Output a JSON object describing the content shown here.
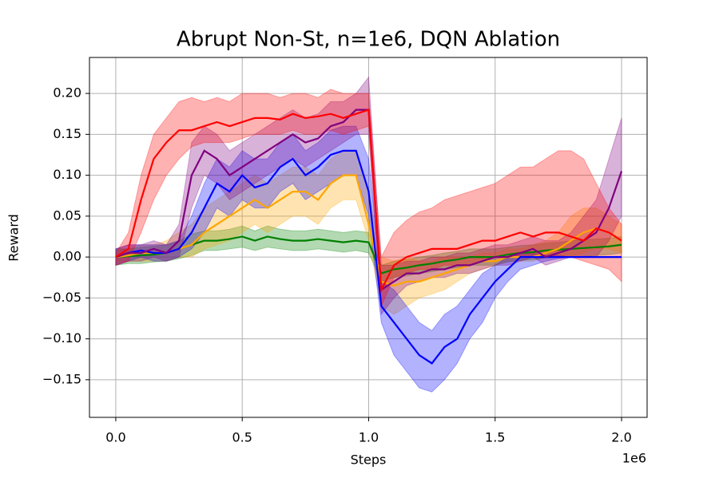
{
  "chart_data": {
    "type": "line",
    "title": "Abrupt Non-St, n=1e6, DQN Ablation",
    "x_label": "Steps",
    "y_label": "Reward",
    "x_offset_label": "1e6",
    "grid": true,
    "xlim": [
      -0.104,
      2.101
    ],
    "ylim": [
      -0.196,
      0.244
    ],
    "xticks": [
      {
        "value": 0,
        "label": "0.0"
      },
      {
        "value": 0.5,
        "label": "0.5"
      },
      {
        "value": 1,
        "label": "1.0"
      },
      {
        "value": 1.5,
        "label": "1.5"
      },
      {
        "value": 2,
        "label": "2.0"
      }
    ],
    "yticks": [
      {
        "value": -0.15,
        "label": "−0.15"
      },
      {
        "value": -0.1,
        "label": "−0.10"
      },
      {
        "value": -0.05,
        "label": "−0.05"
      },
      {
        "value": 0,
        "label": "0.00"
      },
      {
        "value": 0.05,
        "label": "0.05"
      },
      {
        "value": 0.1,
        "label": "0.10"
      },
      {
        "value": 0.15,
        "label": "0.15"
      },
      {
        "value": 0.2,
        "label": "0.20"
      }
    ],
    "x": [
      0,
      0.05,
      0.1,
      0.15,
      0.2,
      0.25,
      0.3,
      0.35,
      0.4,
      0.45,
      0.5,
      0.55,
      0.6,
      0.65,
      0.7,
      0.75,
      0.8,
      0.85,
      0.9,
      0.95,
      1.0,
      1.05,
      1.1,
      1.15,
      1.2,
      1.25,
      1.3,
      1.35,
      1.4,
      1.45,
      1.5,
      1.55,
      1.6,
      1.65,
      1.7,
      1.75,
      1.8,
      1.85,
      1.9,
      1.95,
      2.0
    ],
    "series": [
      {
        "color": "green",
        "values": [
          0,
          0.001,
          0.002,
          0.003,
          0.005,
          0.01,
          0.015,
          0.02,
          0.02,
          0.022,
          0.025,
          0.02,
          0.025,
          0.022,
          0.02,
          0.02,
          0.022,
          0.02,
          0.018,
          0.02,
          0.018,
          -0.02,
          -0.015,
          -0.013,
          -0.01,
          -0.008,
          -0.005,
          -0.003,
          0,
          0,
          0,
          0.003,
          0.005,
          0.006,
          0.008,
          0.009,
          0.01,
          0.011,
          0.012,
          0.013,
          0.015
        ],
        "lower": [
          -0.01,
          -0.008,
          -0.008,
          -0.006,
          -0.005,
          -0.002,
          0.002,
          0.008,
          0.008,
          0.01,
          0.012,
          0.008,
          0.012,
          0.01,
          0.008,
          0.008,
          0.01,
          0.008,
          0.006,
          0.008,
          0.005,
          -0.03,
          -0.025,
          -0.023,
          -0.02,
          -0.018,
          -0.015,
          -0.013,
          -0.01,
          -0.01,
          -0.01,
          -0.006,
          -0.004,
          -0.003,
          -0.001,
          0,
          0,
          0.001,
          0.002,
          0.003,
          0.005
        ],
        "upper": [
          0.01,
          0.01,
          0.012,
          0.013,
          0.015,
          0.02,
          0.028,
          0.032,
          0.032,
          0.034,
          0.038,
          0.032,
          0.038,
          0.034,
          0.032,
          0.032,
          0.034,
          0.032,
          0.03,
          0.032,
          0.03,
          -0.01,
          -0.005,
          -0.003,
          0,
          0.002,
          0.005,
          0.007,
          0.01,
          0.01,
          0.01,
          0.012,
          0.014,
          0.015,
          0.017,
          0.018,
          0.02,
          0.021,
          0.022,
          0.023,
          0.025
        ]
      },
      {
        "color": "orange",
        "values": [
          0,
          0.002,
          0.005,
          0.005,
          0.005,
          0.01,
          0.015,
          0.03,
          0.04,
          0.05,
          0.06,
          0.07,
          0.06,
          0.07,
          0.08,
          0.08,
          0.07,
          0.09,
          0.1,
          0.1,
          0.04,
          -0.03,
          -0.035,
          -0.03,
          -0.03,
          -0.025,
          -0.02,
          -0.015,
          -0.01,
          -0.005,
          -0.005,
          0,
          0,
          0,
          0.005,
          0.01,
          0.02,
          0.03,
          0.035,
          0.03,
          0.02
        ],
        "lower": [
          -0.005,
          -0.005,
          -0.005,
          -0.005,
          -0.005,
          0,
          0,
          0.01,
          0.015,
          0.02,
          0.03,
          0.04,
          0.03,
          0.04,
          0.05,
          0.05,
          0.04,
          0.06,
          0.07,
          0.07,
          0.02,
          -0.06,
          -0.07,
          -0.06,
          -0.05,
          -0.045,
          -0.04,
          -0.03,
          -0.02,
          -0.015,
          -0.01,
          -0.005,
          -0.005,
          -0.005,
          0,
          0,
          0,
          0.005,
          0.01,
          0.01,
          0.005
        ],
        "upper": [
          0.01,
          0.01,
          0.015,
          0.015,
          0.02,
          0.03,
          0.04,
          0.06,
          0.07,
          0.08,
          0.09,
          0.1,
          0.09,
          0.1,
          0.11,
          0.11,
          0.1,
          0.12,
          0.13,
          0.13,
          0.08,
          0,
          -0.005,
          0,
          -0.005,
          -0.005,
          0,
          0,
          0,
          0.005,
          0.005,
          0.01,
          0.01,
          0.015,
          0.02,
          0.03,
          0.05,
          0.06,
          0.06,
          0.05,
          0.04
        ]
      },
      {
        "color": "blue",
        "values": [
          0,
          0.005,
          0.008,
          0.005,
          0.005,
          0.01,
          0.03,
          0.06,
          0.09,
          0.08,
          0.1,
          0.085,
          0.09,
          0.11,
          0.12,
          0.1,
          0.11,
          0.125,
          0.13,
          0.13,
          0.08,
          -0.06,
          -0.08,
          -0.1,
          -0.12,
          -0.13,
          -0.11,
          -0.1,
          -0.07,
          -0.05,
          -0.03,
          -0.015,
          0,
          0,
          0,
          0,
          0,
          0,
          0,
          0,
          0
        ],
        "lower": [
          -0.01,
          -0.005,
          0,
          -0.005,
          -0.005,
          0,
          0.01,
          0.03,
          0.06,
          0.05,
          0.07,
          0.06,
          0.06,
          0.08,
          0.09,
          0.07,
          0.08,
          0.09,
          0.1,
          0.1,
          0.05,
          -0.08,
          -0.12,
          -0.14,
          -0.16,
          -0.165,
          -0.15,
          -0.13,
          -0.1,
          -0.08,
          -0.05,
          -0.03,
          -0.015,
          -0.01,
          -0.005,
          -0.002,
          0,
          0,
          0,
          0,
          0
        ],
        "upper": [
          0.01,
          0.015,
          0.015,
          0.015,
          0.015,
          0.02,
          0.05,
          0.09,
          0.12,
          0.11,
          0.13,
          0.12,
          0.12,
          0.14,
          0.15,
          0.13,
          0.14,
          0.155,
          0.16,
          0.16,
          0.12,
          -0.03,
          -0.04,
          -0.06,
          -0.08,
          -0.09,
          -0.07,
          -0.06,
          -0.04,
          -0.02,
          -0.01,
          0,
          0.005,
          0.005,
          0.002,
          0.002,
          0,
          0,
          0,
          0,
          0
        ]
      },
      {
        "color": "purple",
        "values": [
          0,
          0.005,
          0.005,
          0.01,
          0.005,
          0.02,
          0.1,
          0.13,
          0.12,
          0.1,
          0.11,
          0.12,
          0.13,
          0.14,
          0.15,
          0.14,
          0.145,
          0.16,
          0.165,
          0.18,
          0.18,
          -0.04,
          -0.03,
          -0.02,
          -0.02,
          -0.015,
          -0.015,
          -0.01,
          -0.01,
          -0.005,
          0,
          0,
          0.005,
          0.01,
          0,
          0.005,
          0.01,
          0.02,
          0.03,
          0.06,
          0.105
        ],
        "lower": [
          -0.01,
          -0.005,
          -0.005,
          0,
          -0.005,
          0,
          0.06,
          0.1,
          0.09,
          0.07,
          0.08,
          0.09,
          0.1,
          0.11,
          0.12,
          0.11,
          0.12,
          0.13,
          0.14,
          0.15,
          0.15,
          -0.07,
          -0.05,
          -0.035,
          -0.03,
          -0.025,
          -0.025,
          -0.02,
          -0.02,
          -0.015,
          -0.01,
          -0.01,
          -0.005,
          0,
          -0.01,
          -0.005,
          0,
          0,
          0,
          0.02,
          0.05
        ],
        "upper": [
          0.01,
          0.015,
          0.015,
          0.02,
          0.015,
          0.04,
          0.14,
          0.16,
          0.15,
          0.13,
          0.14,
          0.15,
          0.16,
          0.17,
          0.18,
          0.17,
          0.175,
          0.19,
          0.19,
          0.2,
          0.22,
          -0.01,
          -0.01,
          -0.005,
          -0.005,
          0,
          0,
          0.005,
          0.005,
          0.01,
          0.015,
          0.015,
          0.02,
          0.025,
          0.02,
          0.02,
          0.03,
          0.05,
          0.07,
          0.12,
          0.17
        ]
      },
      {
        "color": "red",
        "values": [
          0,
          0.01,
          0.07,
          0.12,
          0.14,
          0.155,
          0.155,
          0.16,
          0.165,
          0.16,
          0.165,
          0.17,
          0.17,
          0.168,
          0.175,
          0.17,
          0.172,
          0.175,
          0.17,
          0.175,
          0.18,
          -0.04,
          -0.01,
          0,
          0.005,
          0.01,
          0.01,
          0.01,
          0.015,
          0.02,
          0.02,
          0.025,
          0.03,
          0.025,
          0.03,
          0.03,
          0.025,
          0.02,
          0.035,
          0.03,
          0.02
        ],
        "lower": [
          -0.01,
          -0.005,
          0.03,
          0.07,
          0.1,
          0.12,
          0.135,
          0.14,
          0.14,
          0.14,
          0.145,
          0.15,
          0.15,
          0.15,
          0.155,
          0.15,
          0.15,
          0.155,
          0.15,
          0.155,
          0.16,
          -0.06,
          -0.025,
          -0.02,
          -0.015,
          -0.015,
          -0.01,
          -0.01,
          -0.01,
          -0.005,
          0,
          0,
          0,
          0,
          0,
          0,
          0,
          -0.005,
          -0.01,
          -0.015,
          -0.03
        ],
        "upper": [
          0.005,
          0.03,
          0.1,
          0.15,
          0.17,
          0.19,
          0.195,
          0.19,
          0.195,
          0.19,
          0.2,
          0.2,
          0.2,
          0.195,
          0.2,
          0.2,
          0.195,
          0.205,
          0.2,
          0.2,
          0.2,
          0,
          0.03,
          0.045,
          0.055,
          0.06,
          0.07,
          0.075,
          0.08,
          0.085,
          0.09,
          0.1,
          0.11,
          0.11,
          0.12,
          0.13,
          0.13,
          0.12,
          0.09,
          0.06,
          0.04
        ]
      }
    ]
  }
}
